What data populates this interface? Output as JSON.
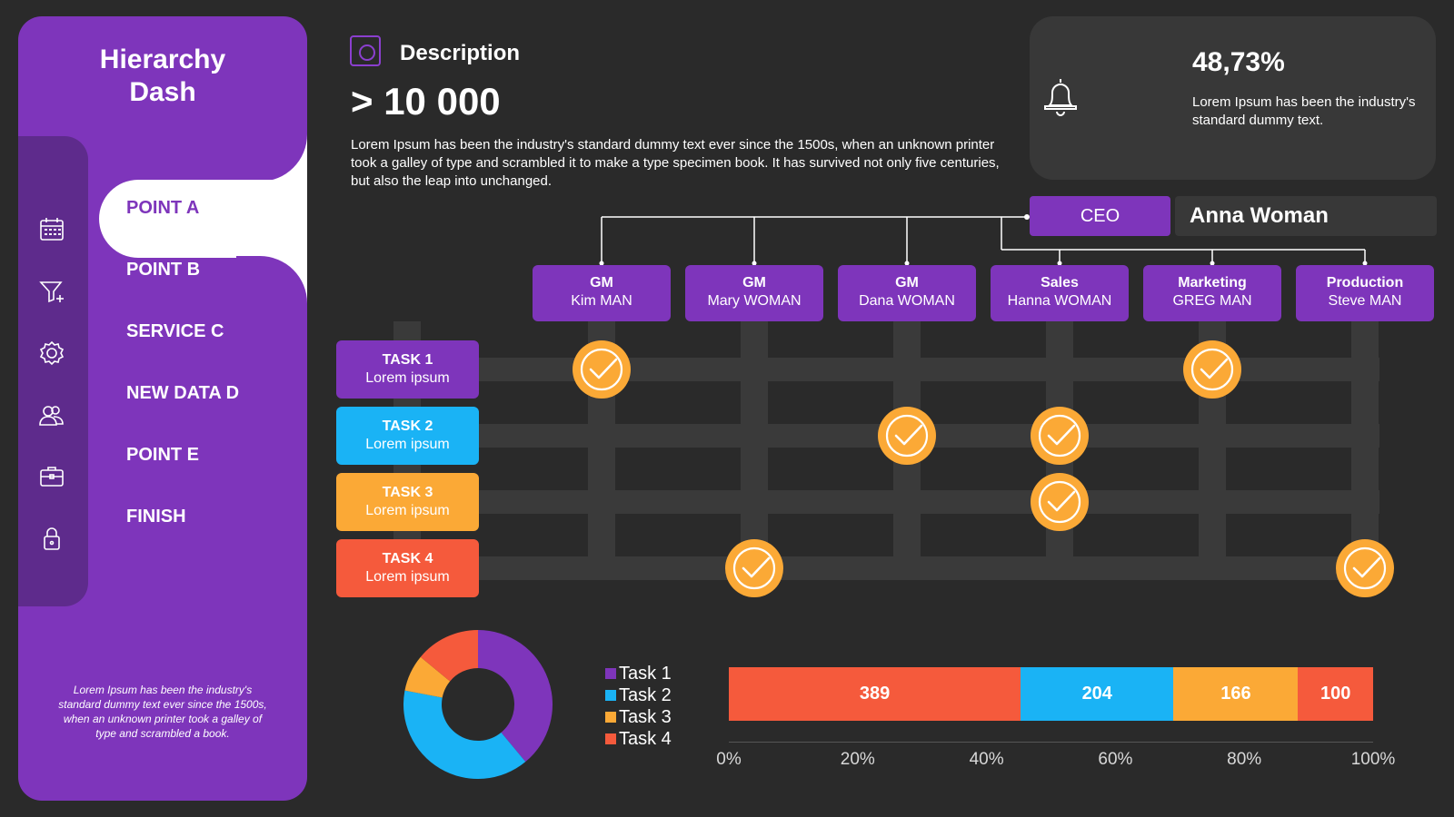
{
  "sidebar": {
    "title_line1": "Hierarchy",
    "title_line2": "Dash",
    "items": [
      {
        "label": "POINT A",
        "icon": "calendar-icon",
        "active": true
      },
      {
        "label": "POINT B",
        "icon": "filter-icon"
      },
      {
        "label": "SERVICE C",
        "icon": "settings-icon"
      },
      {
        "label": "NEW DATA D",
        "icon": "users-icon"
      },
      {
        "label": "POINT E",
        "icon": "briefcase-icon"
      },
      {
        "label": "FINISH",
        "icon": "lock-icon"
      }
    ],
    "note": "Lorem Ipsum has been the industry's standard dummy text ever since the 1500s, when an unknown printer took a galley of type and scrambled  a book."
  },
  "description": {
    "title": "Description",
    "value": "> 10 000",
    "text": "Lorem Ipsum has been the industry's standard dummy text ever since the 1500s, when an unknown printer took a galley of type and scrambled it to make a type specimen book. It has survived not only five centuries, but also the leap into unchanged."
  },
  "stat": {
    "value": "48,73%",
    "text": "Lorem Ipsum has been the industry's standard dummy text.",
    "icon": "bell-icon"
  },
  "ceo": {
    "label": "CEO",
    "name": "Anna Woman"
  },
  "departments": [
    {
      "role": "GM",
      "person": "Kim MAN"
    },
    {
      "role": "GM",
      "person": "Mary WOMAN"
    },
    {
      "role": "GM",
      "person": "Dana WOMAN"
    },
    {
      "role": "Sales",
      "person": "Hanna WOMAN"
    },
    {
      "role": "Marketing",
      "person": "GREG MAN"
    },
    {
      "role": "Production",
      "person": "Steve MAN"
    }
  ],
  "tasks": [
    {
      "name": "TASK 1",
      "sub": "Lorem ipsum",
      "color": "#7e35bb",
      "done": [
        "Kim MAN",
        "GREG MAN"
      ]
    },
    {
      "name": "TASK 2",
      "sub": "Lorem ipsum",
      "color": "#1ab3f5",
      "done": [
        "Dana WOMAN",
        "Hanna WOMAN"
      ]
    },
    {
      "name": "TASK 3",
      "sub": "Lorem ipsum",
      "color": "#fba936",
      "done": [
        "Hanna WOMAN"
      ]
    },
    {
      "name": "TASK 4",
      "sub": "Lorem ipsum",
      "color": "#f55a3c",
      "done": [
        "Mary WOMAN",
        "Steve MAN"
      ]
    }
  ],
  "colors": {
    "purple": "#7e35bb",
    "blue": "#1ab3f5",
    "orange": "#fba936",
    "red": "#f55a3c",
    "check": "#fba936"
  },
  "chart_data": [
    {
      "type": "pie",
      "categories": [
        "Task 1",
        "Task 2",
        "Task 3",
        "Task 4"
      ],
      "values": [
        39,
        39,
        8,
        14
      ],
      "colors": [
        "#7e35bb",
        "#1ab3f5",
        "#fba936",
        "#f55a3c"
      ],
      "legend": "right"
    },
    {
      "type": "bar",
      "orientation": "horizontal",
      "stacked": true,
      "series": [
        {
          "name": "",
          "value": 389,
          "color": "#f55a3c"
        },
        {
          "name": "",
          "value": 204,
          "color": "#1ab3f5"
        },
        {
          "name": "",
          "value": 166,
          "color": "#fba936"
        },
        {
          "name": "",
          "value": 100,
          "color": "#f55a3c"
        }
      ],
      "tick_labels": [
        "0%",
        "20%",
        "40%",
        "60%",
        "80%",
        "100%"
      ]
    }
  ]
}
